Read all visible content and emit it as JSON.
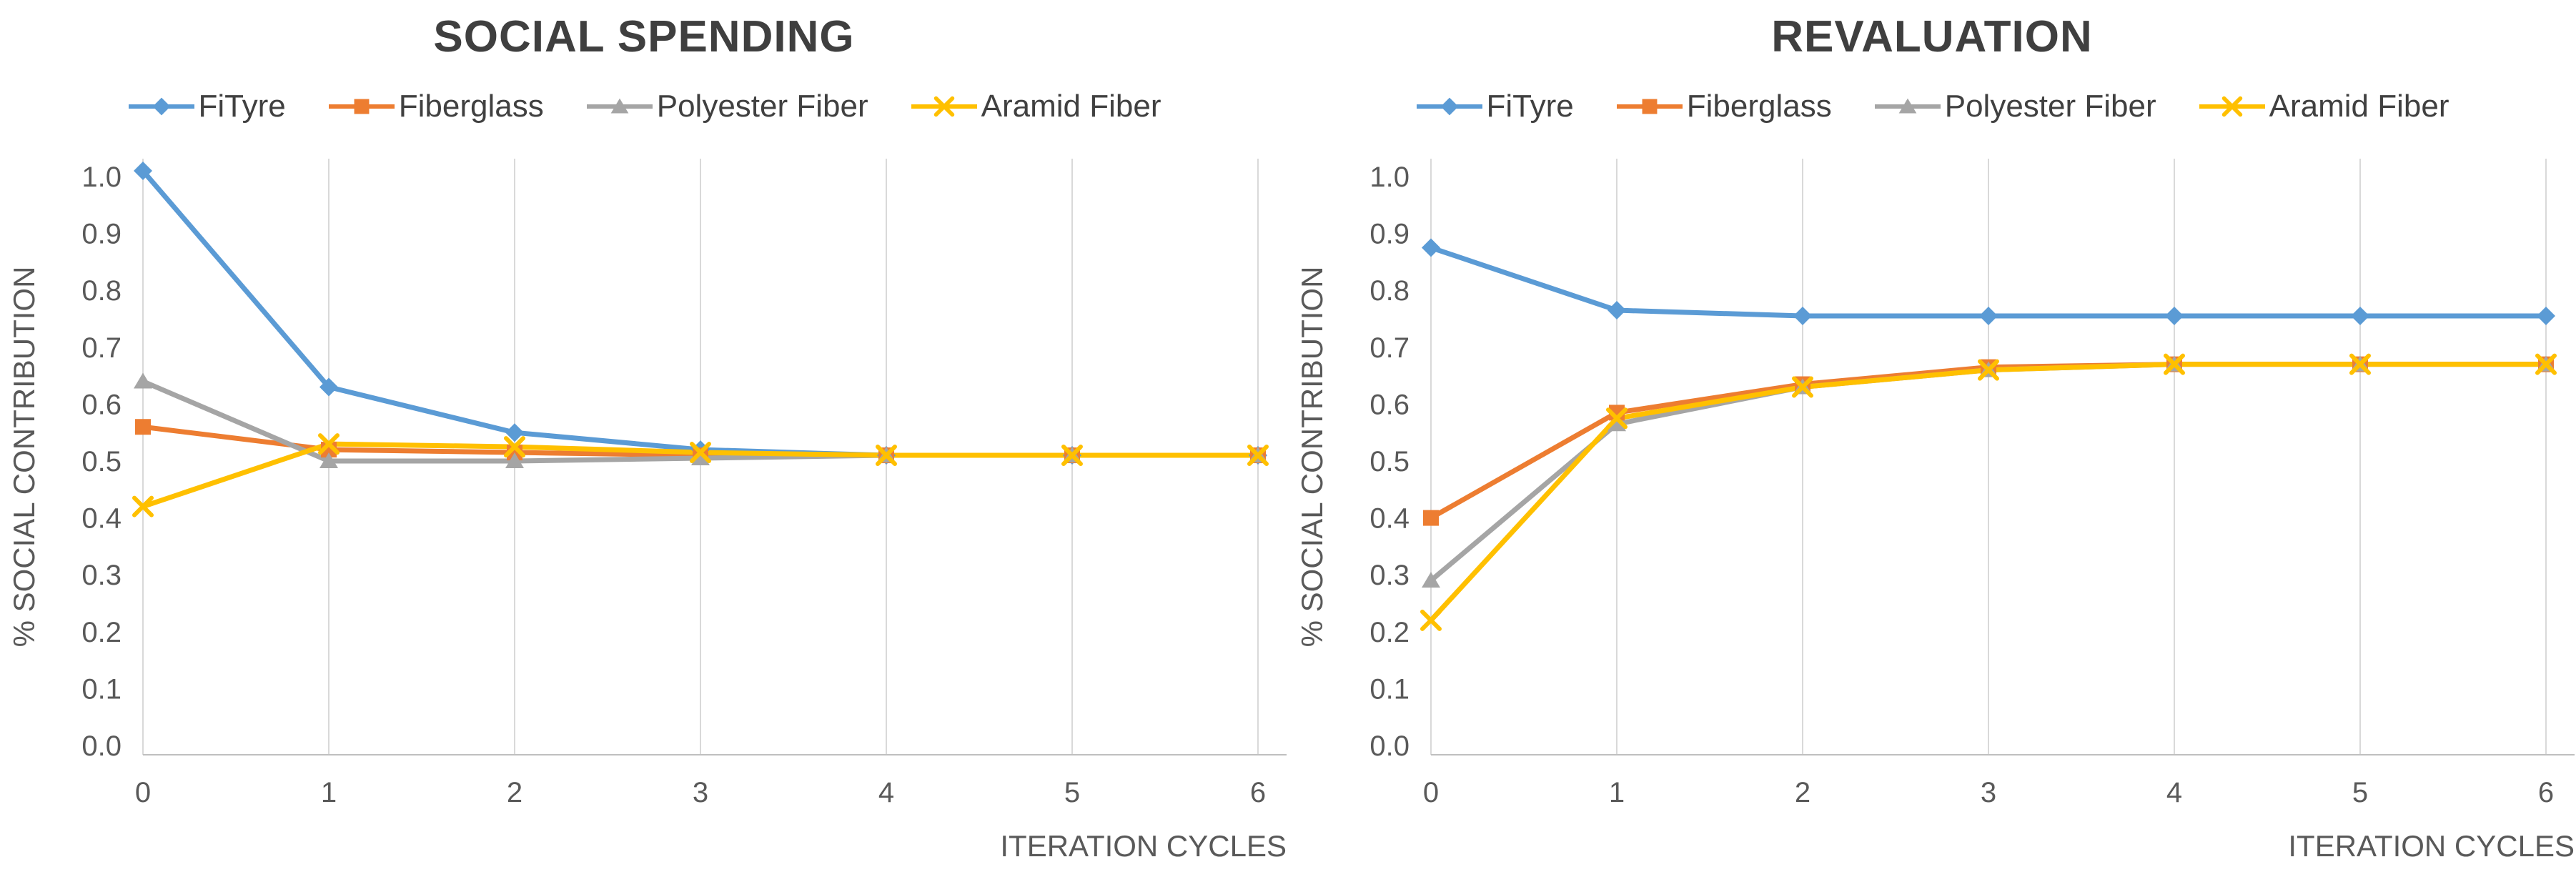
{
  "page": {
    "background": "#FFFFFF"
  },
  "ui_colors": {
    "title_text": "#3F3F3F",
    "axis_text": "#595959",
    "legend_text": "#404040",
    "gridline": "#D9D9D9",
    "axis_line": "#BFBFBF",
    "background": "#FFFFFF"
  },
  "chart_data": [
    {
      "type": "line",
      "title": "SOCIAL SPENDING",
      "xlabel": "ITERATION CYCLES",
      "ylabel": "% SOCIAL CONTRIBUTION",
      "x": [
        0,
        1,
        2,
        3,
        4,
        5,
        6
      ],
      "x_tick_labels": [
        "0",
        "1",
        "2",
        "3",
        "4",
        "5",
        "6"
      ],
      "y_tick_labels": [
        "1.0",
        "0.9",
        "0.8",
        "0.7",
        "0.6",
        "0.5",
        "0.4",
        "0.3",
        "0.2",
        "0.1",
        "0.0"
      ],
      "ylim": [
        0.0,
        1.0
      ],
      "grid": "vertical-only",
      "legend_position": "top",
      "series": [
        {
          "name": "FiTyre",
          "marker": "diamond",
          "color": "#5B9BD5",
          "values": [
            1.01,
            0.63,
            0.55,
            0.52,
            0.51,
            0.51,
            0.51
          ]
        },
        {
          "name": "Fiberglass",
          "marker": "square",
          "color": "#ED7D31",
          "values": [
            0.56,
            0.52,
            0.515,
            0.51,
            0.51,
            0.51,
            0.51
          ]
        },
        {
          "name": "Polyester Fiber",
          "marker": "triangle",
          "color": "#A5A5A5",
          "values": [
            0.64,
            0.5,
            0.5,
            0.505,
            0.51,
            0.51,
            0.51
          ]
        },
        {
          "name": "Aramid Fiber",
          "marker": "x",
          "color": "#FFC000",
          "values": [
            0.42,
            0.53,
            0.525,
            0.515,
            0.51,
            0.51,
            0.51
          ]
        }
      ]
    },
    {
      "type": "line",
      "title": "REVALUATION",
      "xlabel": "ITERATION CYCLES",
      "ylabel": "% SOCIAL CONTRIBUTION",
      "x": [
        0,
        1,
        2,
        3,
        4,
        5,
        6
      ],
      "x_tick_labels": [
        "0",
        "1",
        "2",
        "3",
        "4",
        "5",
        "6"
      ],
      "y_tick_labels": [
        "1.0",
        "0.9",
        "0.8",
        "0.7",
        "0.6",
        "0.5",
        "0.4",
        "0.3",
        "0.2",
        "0.1",
        "0.0"
      ],
      "ylim": [
        0.0,
        1.0
      ],
      "grid": "vertical-only",
      "legend_position": "top",
      "series": [
        {
          "name": "FiTyre",
          "marker": "diamond",
          "color": "#5B9BD5",
          "values": [
            0.875,
            0.765,
            0.755,
            0.755,
            0.755,
            0.755,
            0.755
          ]
        },
        {
          "name": "Fiberglass",
          "marker": "square",
          "color": "#ED7D31",
          "values": [
            0.4,
            0.585,
            0.635,
            0.665,
            0.67,
            0.67,
            0.67
          ]
        },
        {
          "name": "Polyester Fiber",
          "marker": "triangle",
          "color": "#A5A5A5",
          "values": [
            0.29,
            0.565,
            0.63,
            0.66,
            0.67,
            0.67,
            0.67
          ]
        },
        {
          "name": "Aramid Fiber",
          "marker": "x",
          "color": "#FFC000",
          "values": [
            0.22,
            0.575,
            0.63,
            0.66,
            0.67,
            0.67,
            0.67
          ]
        }
      ]
    }
  ]
}
